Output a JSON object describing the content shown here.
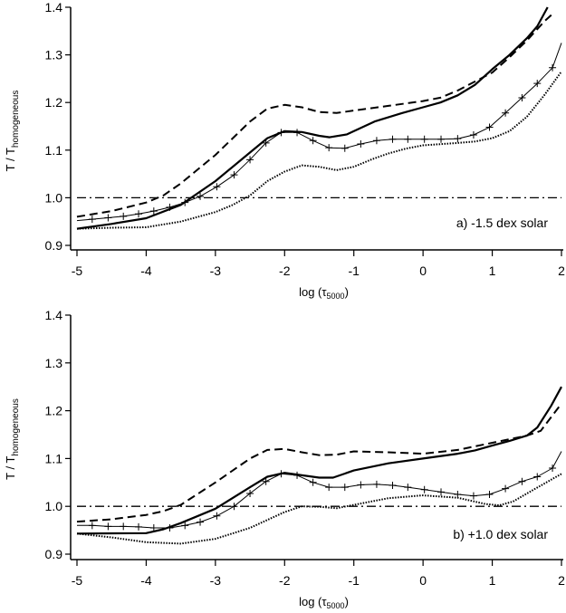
{
  "chart_data": [
    {
      "type": "line",
      "panel": "a",
      "annotation": "a) -1.5 dex solar",
      "xlabel_main": "log (τ",
      "xlabel_sub": "5000",
      "xlabel_end": ")",
      "ylabel_main": "T / T",
      "ylabel_sub": "homogeneous",
      "xlim": [
        -5,
        2
      ],
      "ylim": [
        0.9,
        1.4
      ],
      "xticks": [
        "-5",
        "-4",
        "-3",
        "-2",
        "-1",
        "0",
        "1",
        "2"
      ],
      "yticks": [
        "0.9",
        "1.0",
        "1.1",
        "1.2",
        "1.3",
        "1.4"
      ],
      "reference_line": 1.0,
      "series": [
        {
          "style": "solid-thick",
          "x": [
            -5,
            -4.5,
            -4,
            -3.5,
            -3,
            -2.5,
            -2.25,
            -2,
            -1.75,
            -1.5,
            -1.35,
            -1.1,
            -0.7,
            -0.3,
            0,
            0.25,
            0.5,
            0.75,
            1,
            1.25,
            1.5,
            1.65,
            1.8
          ],
          "y": [
            0.935,
            0.945,
            0.957,
            0.985,
            1.035,
            1.095,
            1.125,
            1.14,
            1.138,
            1.13,
            1.127,
            1.133,
            1.16,
            1.178,
            1.19,
            1.2,
            1.215,
            1.237,
            1.27,
            1.3,
            1.335,
            1.36,
            1.4
          ]
        },
        {
          "style": "dashed",
          "x": [
            -5,
            -4.5,
            -4,
            -3.75,
            -3.5,
            -3,
            -2.5,
            -2.25,
            -2,
            -1.75,
            -1.5,
            -1.25,
            -1,
            -0.5,
            0,
            0.25,
            0.5,
            1,
            1.25,
            1.5,
            1.75,
            1.9
          ],
          "y": [
            0.96,
            0.972,
            0.99,
            1.005,
            1.03,
            1.09,
            1.16,
            1.187,
            1.195,
            1.19,
            1.18,
            1.178,
            1.183,
            1.193,
            1.203,
            1.21,
            1.225,
            1.263,
            1.295,
            1.33,
            1.37,
            1.39
          ]
        },
        {
          "style": "plus",
          "x": [
            -5,
            -4.78,
            -4.55,
            -4.33,
            -4.11,
            -3.89,
            -3.66,
            -3.44,
            -3.22,
            -2.98,
            -2.73,
            -2.5,
            -2.27,
            -2.05,
            -1.82,
            -1.59,
            -1.36,
            -1.13,
            -0.9,
            -0.67,
            -0.44,
            -0.22,
            0.02,
            0.26,
            0.5,
            0.73,
            0.96,
            1.19,
            1.43,
            1.65,
            1.87,
            2
          ],
          "y": [
            0.952,
            0.955,
            0.958,
            0.961,
            0.966,
            0.972,
            0.98,
            0.99,
            1.003,
            1.023,
            1.048,
            1.08,
            1.115,
            1.137,
            1.137,
            1.12,
            1.105,
            1.104,
            1.113,
            1.12,
            1.123,
            1.123,
            1.123,
            1.123,
            1.124,
            1.132,
            1.148,
            1.178,
            1.21,
            1.24,
            1.273,
            1.325
          ]
        },
        {
          "style": "dotted",
          "x": [
            -5,
            -4.5,
            -4,
            -3.5,
            -3,
            -2.75,
            -2.5,
            -2.25,
            -2,
            -1.75,
            -1.5,
            -1.25,
            -1,
            -0.75,
            -0.5,
            -0.25,
            0,
            0.5,
            0.75,
            1,
            1.25,
            1.5,
            1.75,
            2
          ],
          "y": [
            0.935,
            0.937,
            0.938,
            0.95,
            0.97,
            0.985,
            1.005,
            1.035,
            1.055,
            1.068,
            1.065,
            1.058,
            1.065,
            1.08,
            1.093,
            1.103,
            1.11,
            1.115,
            1.118,
            1.125,
            1.14,
            1.17,
            1.215,
            1.265
          ]
        }
      ]
    },
    {
      "type": "line",
      "panel": "b",
      "annotation": "b) +1.0 dex solar",
      "xlabel_main": "log (τ",
      "xlabel_sub": "5000",
      "xlabel_end": ")",
      "ylabel_main": "T / T",
      "ylabel_sub": "homogeneous",
      "xlim": [
        -5,
        2
      ],
      "ylim": [
        0.9,
        1.4
      ],
      "xticks": [
        "-5",
        "-4",
        "-3",
        "-2",
        "-1",
        "0",
        "1",
        "2"
      ],
      "yticks": [
        "0.9",
        "1.0",
        "1.1",
        "1.2",
        "1.3",
        "1.4"
      ],
      "reference_line": 1.0,
      "series": [
        {
          "style": "solid-thick",
          "x": [
            -5,
            -4,
            -3.75,
            -3.5,
            -3,
            -2.5,
            -2.25,
            -2,
            -1.75,
            -1.5,
            -1.3,
            -1,
            -0.5,
            0,
            0.5,
            0.75,
            1,
            1.25,
            1.5,
            1.65,
            1.85,
            2
          ],
          "y": [
            0.943,
            0.944,
            0.952,
            0.965,
            0.995,
            1.04,
            1.062,
            1.07,
            1.065,
            1.06,
            1.06,
            1.075,
            1.09,
            1.1,
            1.11,
            1.117,
            1.127,
            1.137,
            1.148,
            1.165,
            1.21,
            1.25
          ]
        },
        {
          "style": "dashed",
          "x": [
            -5,
            -4.5,
            -4,
            -3.75,
            -3.5,
            -3,
            -2.5,
            -2.25,
            -2,
            -1.75,
            -1.5,
            -1.25,
            -1,
            -0.5,
            0,
            0.5,
            1,
            1.5,
            1.7,
            2
          ],
          "y": [
            0.968,
            0.973,
            0.982,
            0.99,
            1.003,
            1.05,
            1.1,
            1.118,
            1.12,
            1.113,
            1.107,
            1.108,
            1.115,
            1.113,
            1.11,
            1.118,
            1.133,
            1.148,
            1.158,
            1.215
          ]
        },
        {
          "style": "plus",
          "x": [
            -5,
            -4.78,
            -4.55,
            -4.33,
            -4.11,
            -3.89,
            -3.66,
            -3.44,
            -3.22,
            -2.98,
            -2.73,
            -2.5,
            -2.27,
            -2.05,
            -1.82,
            -1.59,
            -1.36,
            -1.13,
            -0.9,
            -0.67,
            -0.44,
            -0.22,
            0.02,
            0.26,
            0.5,
            0.73,
            0.96,
            1.19,
            1.43,
            1.65,
            1.87,
            2
          ],
          "y": [
            0.96,
            0.96,
            0.958,
            0.958,
            0.957,
            0.955,
            0.955,
            0.96,
            0.967,
            0.98,
            1.0,
            1.027,
            1.052,
            1.068,
            1.065,
            1.05,
            1.04,
            1.04,
            1.045,
            1.046,
            1.044,
            1.04,
            1.035,
            1.03,
            1.025,
            1.022,
            1.025,
            1.037,
            1.052,
            1.062,
            1.08,
            1.115
          ]
        },
        {
          "style": "dotted",
          "x": [
            -5,
            -4.5,
            -4,
            -3.5,
            -3,
            -2.5,
            -2,
            -1.75,
            -1.5,
            -1.25,
            -1,
            -0.5,
            0,
            0.5,
            0.9,
            1.1,
            1.3,
            1.6,
            2
          ],
          "y": [
            0.943,
            0.935,
            0.925,
            0.922,
            0.932,
            0.955,
            0.988,
            1.0,
            0.999,
            0.996,
            1.003,
            1.017,
            1.023,
            1.018,
            1.005,
            1.002,
            1.01,
            1.035,
            1.068
          ]
        }
      ]
    }
  ]
}
